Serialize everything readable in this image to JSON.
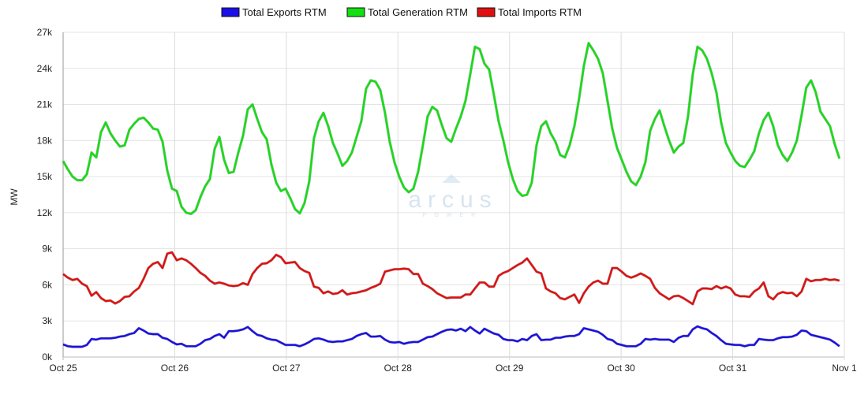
{
  "chart_data": {
    "type": "line",
    "title": "",
    "xlabel": "",
    "ylabel": "MW",
    "ylim": [
      0,
      27000
    ],
    "x_range_hours": [
      0,
      168
    ],
    "hours_per_sample": 1.018,
    "x_ticks": [
      "Oct 25",
      "Oct 26",
      "Oct 27",
      "Oct 28",
      "Oct 29",
      "Oct 30",
      "Oct 31",
      "Nov 1"
    ],
    "y_ticks": [
      {
        "value": 0,
        "label": "0k"
      },
      {
        "value": 3000,
        "label": "3k"
      },
      {
        "value": 6000,
        "label": "6k"
      },
      {
        "value": 9000,
        "label": "9k"
      },
      {
        "value": 12000,
        "label": "12k"
      },
      {
        "value": 15000,
        "label": "15k"
      },
      {
        "value": 18000,
        "label": "18k"
      },
      {
        "value": 21000,
        "label": "21k"
      },
      {
        "value": 24000,
        "label": "24k"
      },
      {
        "value": 27000,
        "label": "27k"
      }
    ],
    "grid": true,
    "legend_position": "top-center",
    "watermark": {
      "brand": "arcus",
      "sub": "POWER"
    },
    "series": [
      {
        "name": "Total Exports RTM",
        "color": "#1a0fe6",
        "values_k": [
          1.05,
          0.9,
          0.85,
          0.85,
          0.85,
          1.0,
          1.5,
          1.45,
          1.55,
          1.55,
          1.55,
          1.6,
          1.7,
          1.75,
          1.9,
          2.0,
          2.4,
          2.2,
          1.95,
          1.9,
          1.9,
          1.6,
          1.5,
          1.25,
          1.05,
          1.1,
          0.9,
          0.9,
          0.9,
          1.1,
          1.4,
          1.5,
          1.75,
          1.9,
          1.6,
          2.15,
          2.15,
          2.2,
          2.3,
          2.5,
          2.15,
          1.85,
          1.75,
          1.55,
          1.45,
          1.4,
          1.2,
          1.0,
          1.0,
          1.0,
          0.9,
          1.05,
          1.25,
          1.5,
          1.55,
          1.45,
          1.3,
          1.25,
          1.3,
          1.3,
          1.4,
          1.5,
          1.75,
          1.9,
          2.0,
          1.7,
          1.7,
          1.75,
          1.45,
          1.25,
          1.2,
          1.25,
          1.1,
          1.2,
          1.25,
          1.25,
          1.45,
          1.65,
          1.7,
          1.9,
          2.1,
          2.25,
          2.3,
          2.2,
          2.35,
          2.15,
          2.5,
          2.2,
          1.95,
          2.35,
          2.15,
          1.95,
          1.85,
          1.5,
          1.4,
          1.4,
          1.3,
          1.5,
          1.4,
          1.75,
          1.9,
          1.4,
          1.45,
          1.45,
          1.6,
          1.6,
          1.7,
          1.75,
          1.75,
          1.9,
          2.4,
          2.3,
          2.2,
          2.1,
          1.85,
          1.5,
          1.4,
          1.1,
          1.0,
          0.9,
          0.9,
          0.9,
          1.1,
          1.5,
          1.45,
          1.5,
          1.45,
          1.45,
          1.45,
          1.25,
          1.6,
          1.75,
          1.75,
          2.3,
          2.55,
          2.4,
          2.3,
          2.0,
          1.75,
          1.4,
          1.1,
          1.05,
          1.0,
          1.0,
          0.9,
          1.0,
          1.0,
          1.5,
          1.45,
          1.4,
          1.4,
          1.55,
          1.65,
          1.65,
          1.7,
          1.85,
          2.2,
          2.15,
          1.85,
          1.75,
          1.65,
          1.55,
          1.45,
          1.2,
          0.9
        ]
      },
      {
        "name": "Total Generation RTM",
        "color": "#11e011",
        "values_k": [
          16.3,
          15.6,
          15.0,
          14.7,
          14.7,
          15.2,
          17.0,
          16.6,
          18.7,
          19.5,
          18.6,
          18.0,
          17.5,
          17.6,
          18.9,
          19.4,
          19.8,
          19.9,
          19.5,
          19.0,
          18.9,
          17.9,
          15.5,
          14.0,
          13.8,
          12.5,
          12.0,
          11.9,
          12.2,
          13.3,
          14.2,
          14.8,
          17.3,
          18.3,
          16.4,
          15.3,
          15.4,
          17.0,
          18.4,
          20.6,
          21.0,
          19.8,
          18.7,
          18.1,
          16.0,
          14.5,
          13.8,
          14.0,
          13.2,
          12.3,
          11.95,
          12.8,
          14.6,
          18.2,
          19.6,
          20.3,
          19.2,
          17.8,
          16.9,
          15.9,
          16.3,
          17.0,
          18.3,
          19.6,
          22.3,
          23.0,
          22.9,
          22.2,
          20.3,
          17.9,
          16.2,
          15.0,
          14.1,
          13.7,
          14.0,
          15.4,
          17.6,
          20.0,
          20.8,
          20.5,
          19.3,
          18.2,
          17.9,
          19.0,
          20.0,
          21.3,
          23.5,
          25.8,
          25.6,
          24.4,
          23.9,
          21.8,
          19.6,
          18.0,
          16.2,
          14.8,
          13.8,
          13.4,
          13.5,
          14.5,
          17.6,
          19.2,
          19.6,
          18.6,
          17.9,
          16.8,
          16.6,
          17.6,
          19.2,
          21.5,
          24.2,
          26.1,
          25.5,
          24.8,
          23.6,
          21.3,
          19.0,
          17.4,
          16.4,
          15.4,
          14.6,
          14.3,
          15.0,
          16.2,
          18.8,
          19.8,
          20.5,
          19.2,
          18.0,
          17.0,
          17.5,
          17.8,
          20.0,
          23.5,
          25.8,
          25.5,
          24.8,
          23.6,
          22.0,
          19.5,
          17.8,
          17.0,
          16.3,
          15.9,
          15.8,
          16.4,
          17.1,
          18.6,
          19.7,
          20.3,
          19.2,
          17.6,
          16.8,
          16.3,
          17.0,
          18.0,
          20.1,
          22.4,
          23.0,
          22.0,
          20.4,
          19.8,
          19.2,
          17.7,
          16.5
        ]
      },
      {
        "name": "Total Imports RTM",
        "color": "#e01010",
        "values_k": [
          6.9,
          6.6,
          6.4,
          6.5,
          6.1,
          5.9,
          5.1,
          5.4,
          4.9,
          4.65,
          4.7,
          4.45,
          4.65,
          5.0,
          5.05,
          5.45,
          5.75,
          6.5,
          7.4,
          7.75,
          7.9,
          7.4,
          8.6,
          8.7,
          8.05,
          8.2,
          8.05,
          7.75,
          7.4,
          7.0,
          6.75,
          6.35,
          6.1,
          6.2,
          6.1,
          5.95,
          5.9,
          5.95,
          6.15,
          6.0,
          6.9,
          7.4,
          7.75,
          7.8,
          8.05,
          8.5,
          8.3,
          7.8,
          7.85,
          7.9,
          7.4,
          7.15,
          7.0,
          5.85,
          5.75,
          5.3,
          5.45,
          5.25,
          5.3,
          5.55,
          5.2,
          5.3,
          5.35,
          5.45,
          5.55,
          5.75,
          5.9,
          6.1,
          7.1,
          7.2,
          7.3,
          7.3,
          7.35,
          7.3,
          6.9,
          6.9,
          6.1,
          5.9,
          5.65,
          5.3,
          5.1,
          4.9,
          4.95,
          4.95,
          4.95,
          5.2,
          5.2,
          5.7,
          6.2,
          6.2,
          5.85,
          5.85,
          6.75,
          7.0,
          7.15,
          7.4,
          7.65,
          7.85,
          8.2,
          7.65,
          7.1,
          6.95,
          5.7,
          5.45,
          5.3,
          4.9,
          4.8,
          5.0,
          5.2,
          4.5,
          5.3,
          5.85,
          6.2,
          6.35,
          6.1,
          6.1,
          7.4,
          7.4,
          7.1,
          6.75,
          6.6,
          6.75,
          6.95,
          6.75,
          6.5,
          5.75,
          5.3,
          5.05,
          4.8,
          5.05,
          5.1,
          4.9,
          4.65,
          4.4,
          5.45,
          5.7,
          5.7,
          5.65,
          5.9,
          5.7,
          5.85,
          5.7,
          5.2,
          5.05,
          5.05,
          5.0,
          5.45,
          5.7,
          6.2,
          5.05,
          4.8,
          5.25,
          5.4,
          5.3,
          5.35,
          5.05,
          5.45,
          6.5,
          6.3,
          6.4,
          6.4,
          6.5,
          6.4,
          6.45,
          6.35
        ]
      }
    ]
  }
}
